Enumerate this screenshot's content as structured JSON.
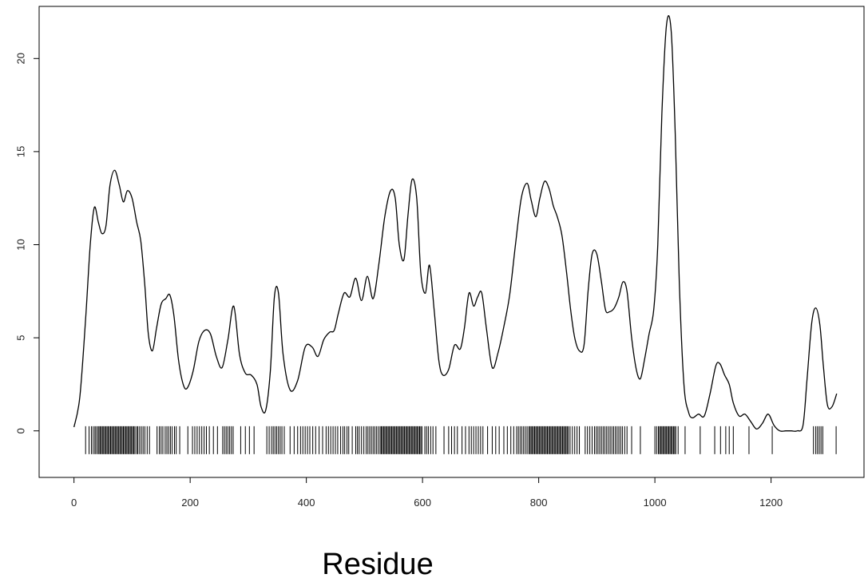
{
  "chart_data": {
    "type": "line",
    "title": "",
    "xlabel": "Residue",
    "ylabel": "",
    "xlim": [
      -60,
      1360
    ],
    "ylim": [
      -2.5,
      22.8
    ],
    "x_ticks": [
      0,
      200,
      400,
      600,
      800,
      1000,
      1200
    ],
    "x_tick_labels": [
      "0",
      "200",
      "400",
      "600",
      "800",
      "1000",
      "1200"
    ],
    "y_ticks": [
      0,
      5,
      10,
      15,
      20
    ],
    "y_tick_labels": [
      "0",
      "5",
      "10",
      "15",
      "20"
    ],
    "grid": false,
    "legend": "none",
    "line_color": "#000000",
    "series": [
      {
        "x": [
          0,
          10,
          20,
          28,
          35,
          42,
          48,
          55,
          62,
          70,
          78,
          85,
          92,
          100,
          108,
          115,
          122,
          128,
          135,
          142,
          150,
          158,
          165,
          172,
          180,
          188,
          195,
          205,
          215,
          225,
          235,
          245,
          255,
          265,
          275,
          285,
          295,
          305,
          315,
          322,
          330,
          338,
          345,
          352,
          360,
          372,
          385,
          398,
          410,
          420,
          430,
          440,
          448,
          455,
          465,
          475,
          485,
          495,
          505,
          515,
          525,
          535,
          545,
          553,
          560,
          568,
          575,
          582,
          590,
          597,
          605,
          612,
          620,
          628,
          635,
          645,
          655,
          665,
          672,
          680,
          688,
          695,
          702,
          710,
          720,
          730,
          740,
          750,
          760,
          770,
          780,
          787,
          795,
          802,
          810,
          818,
          825,
          832,
          840,
          848,
          855,
          862,
          870,
          878,
          885,
          892,
          900,
          908,
          915,
          922,
          930,
          938,
          945,
          952,
          960,
          968,
          975,
          982,
          990,
          998,
          1005,
          1012,
          1020,
          1028,
          1035,
          1042,
          1050,
          1058,
          1065,
          1075,
          1085,
          1095,
          1105,
          1112,
          1120,
          1128,
          1135,
          1145,
          1155,
          1165,
          1175,
          1185,
          1195,
          1205,
          1215,
          1225,
          1235,
          1245,
          1255,
          1262,
          1270,
          1277,
          1284,
          1290,
          1297,
          1305,
          1313
        ],
        "y": [
          0.2,
          1.8,
          6,
          10,
          12,
          11.2,
          10.6,
          11,
          13.2,
          14,
          13.2,
          12.3,
          12.9,
          12.5,
          11.2,
          10.2,
          7.8,
          5.2,
          4.3,
          5.5,
          6.8,
          7.1,
          7.3,
          6.2,
          3.8,
          2.5,
          2.3,
          3.2,
          4.8,
          5.4,
          5.2,
          4,
          3.4,
          4.9,
          6.7,
          4.1,
          3.1,
          3,
          2.5,
          1.3,
          1.1,
          3.2,
          7.2,
          7.4,
          4.1,
          2.2,
          2.7,
          4.5,
          4.5,
          4,
          4.9,
          5.3,
          5.4,
          6.3,
          7.4,
          7.2,
          8.2,
          7,
          8.3,
          7.1,
          9,
          11.5,
          12.9,
          12.5,
          10,
          9.2,
          11.6,
          13.5,
          12.5,
          8.5,
          7.4,
          8.9,
          6.5,
          3.8,
          3,
          3.3,
          4.6,
          4.4,
          5.5,
          7.4,
          6.7,
          7.2,
          7.4,
          5.5,
          3.4,
          4.2,
          5.6,
          7.3,
          10,
          12.5,
          13.3,
          12.4,
          11.5,
          12.5,
          13.4,
          13,
          12.1,
          11.5,
          10.5,
          8.5,
          6.5,
          5,
          4.3,
          4.6,
          7.5,
          9.5,
          9.5,
          8,
          6.5,
          6.4,
          6.6,
          7.2,
          8,
          7.5,
          5,
          3.3,
          2.8,
          3.8,
          5.2,
          6.5,
          10,
          17,
          21.8,
          21.5,
          16,
          8,
          2.5,
          1,
          0.7,
          0.9,
          0.8,
          2,
          3.5,
          3.6,
          3,
          2.5,
          1.5,
          0.8,
          0.9,
          0.5,
          0.1,
          0.4,
          0.9,
          0.3,
          0,
          0,
          0,
          0,
          0.3,
          2.8,
          5.8,
          6.6,
          5.7,
          3.5,
          1.4,
          1.3,
          2
        ]
      }
    ],
    "rug": [
      20,
      26,
      30,
      33,
      36,
      38,
      41,
      43,
      45,
      47,
      49,
      51,
      53,
      55,
      57,
      59,
      61,
      63,
      65,
      67,
      69,
      71,
      73,
      75,
      77,
      79,
      81,
      83,
      85,
      87,
      89,
      91,
      93,
      95,
      97,
      99,
      101,
      103,
      105,
      108,
      110,
      113,
      116,
      119,
      122,
      126,
      130,
      143,
      147,
      150,
      153,
      157,
      160,
      163,
      166,
      169,
      173,
      176,
      182,
      196,
      204,
      208,
      212,
      216,
      220,
      224,
      228,
      233,
      240,
      247,
      256,
      259,
      262,
      265,
      268,
      271,
      274,
      287,
      295,
      302,
      310,
      332,
      336,
      340,
      343,
      346,
      349,
      352,
      355,
      358,
      362,
      372,
      379,
      385,
      390,
      394,
      398,
      402,
      406,
      411,
      416,
      422,
      428,
      434,
      438,
      442,
      446,
      450,
      454,
      459,
      463,
      466,
      470,
      473,
      479,
      485,
      488,
      491,
      495,
      499,
      503,
      506,
      509,
      512,
      515,
      518,
      521,
      524,
      527,
      529,
      531,
      533,
      535,
      537,
      539,
      541,
      543,
      545,
      547,
      549,
      551,
      553,
      555,
      557,
      559,
      561,
      563,
      565,
      567,
      569,
      571,
      573,
      575,
      577,
      579,
      581,
      583,
      585,
      587,
      589,
      591,
      593,
      595,
      597,
      599,
      604,
      607,
      610,
      614,
      618,
      623,
      637,
      645,
      650,
      655,
      660,
      668,
      674,
      680,
      684,
      688,
      692,
      696,
      700,
      704,
      712,
      720,
      726,
      732,
      740,
      746,
      752,
      757,
      762,
      765,
      768,
      771,
      774,
      777,
      780,
      783,
      785,
      787,
      789,
      791,
      793,
      795,
      797,
      799,
      801,
      803,
      805,
      807,
      809,
      811,
      813,
      815,
      817,
      819,
      821,
      823,
      825,
      827,
      829,
      831,
      833,
      835,
      837,
      839,
      841,
      843,
      845,
      847,
      849,
      851,
      854,
      858,
      862,
      866,
      870,
      880,
      884,
      888,
      892,
      896,
      899,
      902,
      905,
      908,
      911,
      914,
      917,
      920,
      923,
      926,
      929,
      932,
      935,
      938,
      941,
      944,
      948,
      952,
      960,
      975,
      1000,
      1003,
      1006,
      1008,
      1010,
      1012,
      1014,
      1016,
      1018,
      1020,
      1022,
      1024,
      1026,
      1028,
      1030,
      1032,
      1034,
      1036,
      1040,
      1052,
      1078,
      1103,
      1113,
      1122,
      1128,
      1135,
      1162,
      1202,
      1273,
      1277,
      1280,
      1283,
      1286,
      1289,
      1312
    ]
  }
}
